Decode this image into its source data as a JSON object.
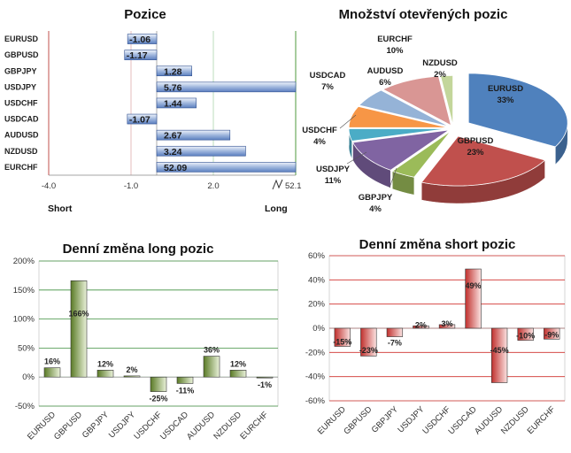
{
  "chart_data": [
    {
      "type": "bar",
      "orientation": "horizontal",
      "title": "Pozice",
      "categories": [
        "EURUSD",
        "GBPUSD",
        "GBPJPY",
        "USDJPY",
        "USDCHF",
        "USDCAD",
        "AUDUSD",
        "NZDUSD",
        "EURCHF"
      ],
      "values": [
        -1.06,
        -1.17,
        1.28,
        5.76,
        1.44,
        -1.07,
        2.67,
        3.24,
        52.09
      ],
      "data_labels": [
        "-1.06",
        "-1.17",
        "1.28",
        "5.76",
        "1.44",
        "-1.07",
        "2.67",
        "3.24",
        "52.09"
      ],
      "tick_labels": [
        "-4.0",
        "-1.0",
        "2.0"
      ],
      "axis_break_label": "52.1",
      "left_label": "Short",
      "right_label": "Long",
      "colors": {
        "bar": "#7e9ccf",
        "bar_light": "#e3ebf8",
        "edge": "#2f4f8f",
        "line_left": "#c0504d",
        "line_right": "#4f9a3d"
      }
    },
    {
      "type": "pie",
      "title": "Množství otevřených pozic",
      "slices": [
        {
          "name": "EURUSD",
          "value": 33,
          "label": "33%",
          "color": "#4f81bd"
        },
        {
          "name": "GBPUSD",
          "value": 23,
          "label": "23%",
          "color": "#c0504d"
        },
        {
          "name": "GBPJPY",
          "value": 4,
          "label": "4%",
          "color": "#9bbb59"
        },
        {
          "name": "USDJPY",
          "value": 11,
          "label": "11%",
          "color": "#8064a2"
        },
        {
          "name": "USDCHF",
          "value": 4,
          "label": "4%",
          "color": "#4bacc6"
        },
        {
          "name": "USDCAD",
          "value": 7,
          "label": "7%",
          "color": "#f79646"
        },
        {
          "name": "AUDUSD",
          "value": 6,
          "label": "6%",
          "color": "#95b3d7"
        },
        {
          "name": "EURCHF",
          "value": 10,
          "label": "10%",
          "color": "#d99694"
        },
        {
          "name": "NZDUSD",
          "value": 2,
          "label": "2%",
          "color": "#c3d69b"
        }
      ]
    },
    {
      "type": "bar",
      "title": "Denní změna long pozic",
      "categories": [
        "EURUSD",
        "GBPUSD",
        "GBPJPY",
        "USDJPY",
        "USDCHF",
        "USDCAD",
        "AUDUSD",
        "NZDUSD",
        "EURCHF"
      ],
      "values": [
        16,
        166,
        12,
        2,
        -25,
        -11,
        36,
        12,
        -1
      ],
      "data_labels": [
        "16%",
        "166%",
        "12%",
        "2%",
        "-25%",
        "-11%",
        "36%",
        "12%",
        "-1%"
      ],
      "ylim": [
        -50,
        200
      ],
      "y_ticks": [
        "-50%",
        "0%",
        "50%",
        "100%",
        "150%",
        "200%"
      ],
      "y_tick_values": [
        -50,
        0,
        50,
        100,
        150,
        200
      ],
      "colors": {
        "bar_dark": "#5a7a26",
        "bar_light": "#eaf2da",
        "grid": "#3f8f3f"
      }
    },
    {
      "type": "bar",
      "title": "Denní změna short pozic",
      "categories": [
        "EURUSD",
        "GBPUSD",
        "GBPJPY",
        "USDJPY",
        "USDCHF",
        "USDCAD",
        "AUDUSD",
        "NZDUSD",
        "EURCHF"
      ],
      "values": [
        -15,
        -23,
        -7,
        2,
        3,
        49,
        -45,
        -10,
        -9
      ],
      "data_labels": [
        "-15%",
        "-23%",
        "-7%",
        "2%",
        "3%",
        "49%",
        "-45%",
        "-10%",
        "-9%"
      ],
      "ylim": [
        -60,
        60
      ],
      "y_ticks": [
        "-60%",
        "-40%",
        "-20%",
        "0%",
        "20%",
        "40%",
        "60%"
      ],
      "y_tick_values": [
        -60,
        -40,
        -20,
        0,
        20,
        40,
        60
      ],
      "colors": {
        "bar_dark": "#c0302d",
        "bar_light": "#fbe3e2",
        "grid": "#d0302d"
      }
    }
  ]
}
